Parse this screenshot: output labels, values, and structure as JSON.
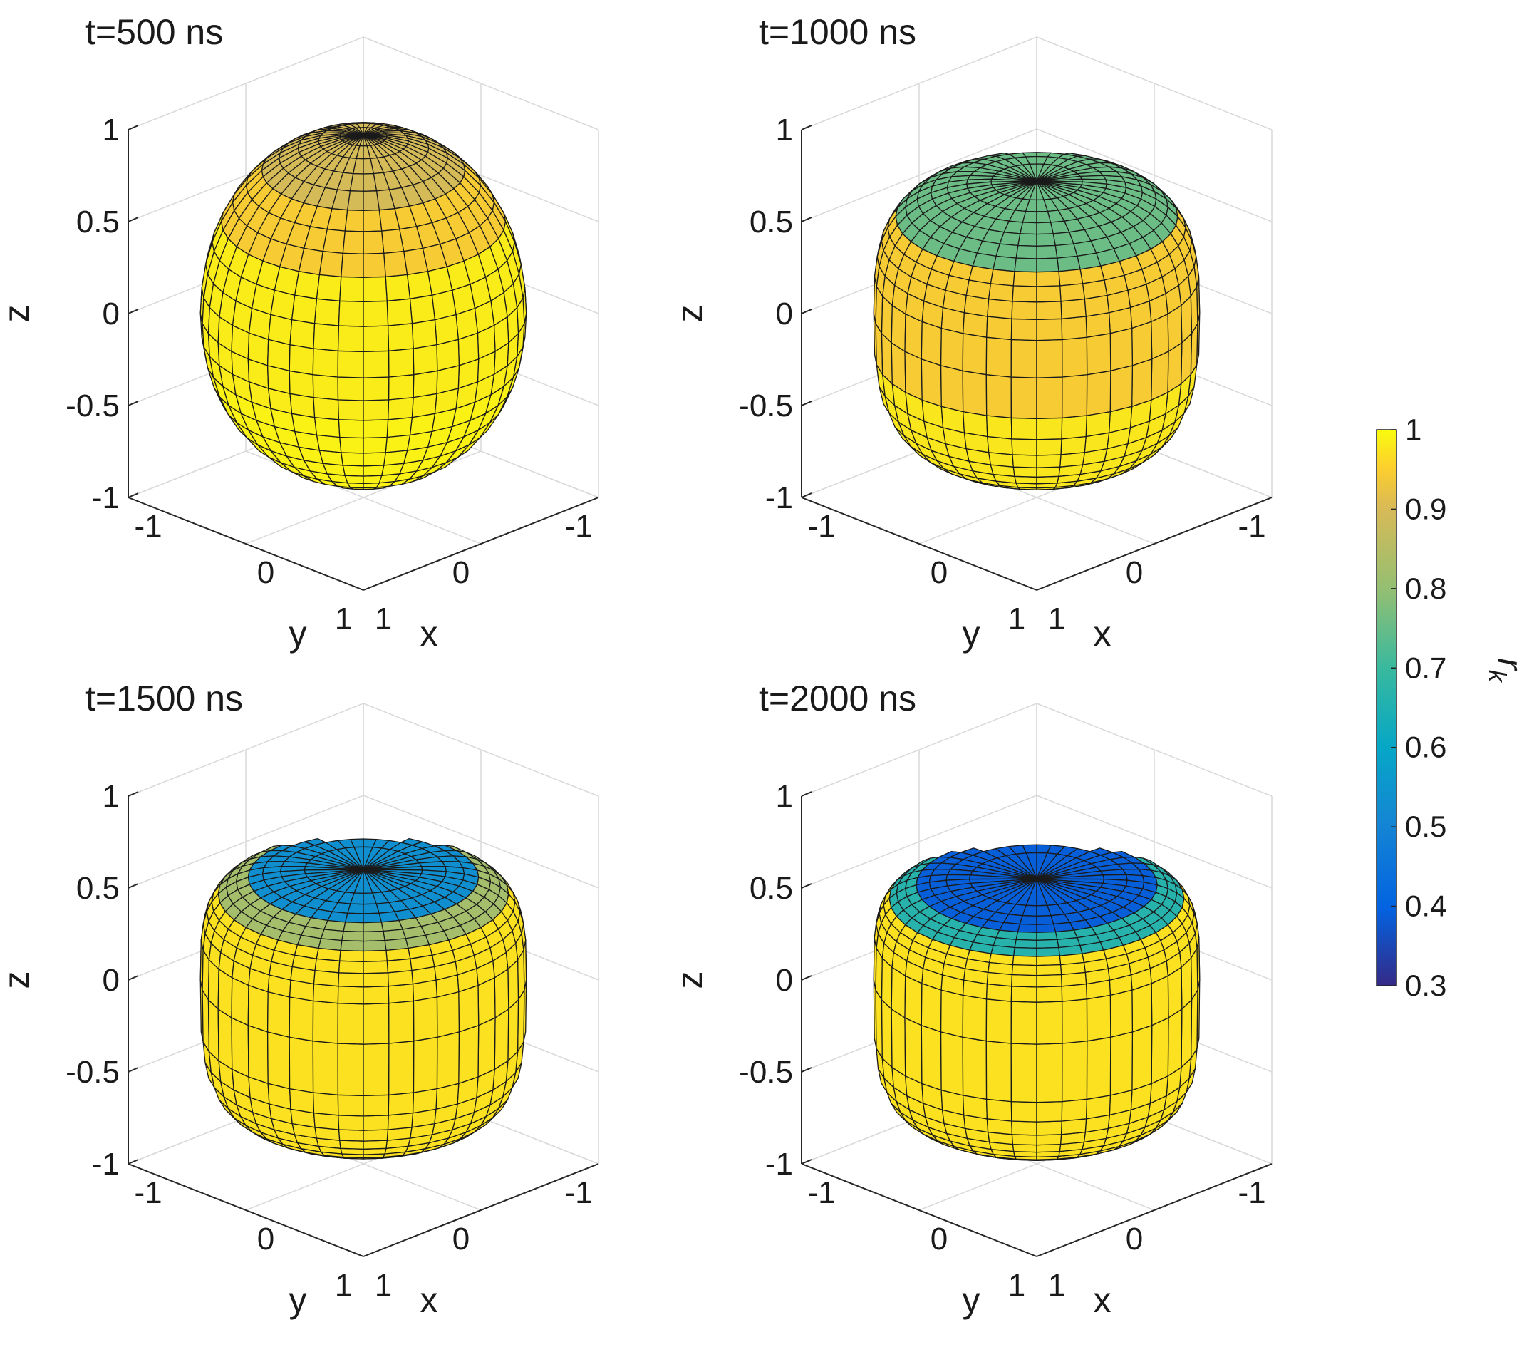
{
  "chart_data": {
    "type": "surface3d",
    "colormap": "parula",
    "colorbar": {
      "label": "r",
      "label_subscript": "k",
      "range": [
        0.3,
        1
      ],
      "ticks": [
        "1",
        "0.9",
        "0.8",
        "0.7",
        "0.6",
        "0.5",
        "0.4",
        "0.3"
      ]
    },
    "panels": [
      {
        "title": "t=500 ns",
        "xlabel": "x",
        "ylabel": "y",
        "zlabel": "z",
        "xticks": [
          "-1",
          "0",
          "1"
        ],
        "yticks": [
          "-1",
          "0",
          "1"
        ],
        "zticks": [
          "1",
          "0.5",
          "0",
          "-0.5",
          "-1"
        ],
        "xlim": [
          -1,
          1
        ],
        "ylim": [
          -1,
          1
        ],
        "zlim": [
          -1,
          1
        ],
        "shape": {
          "equator_radius": 0.98,
          "top_z": 0.97,
          "bottom_z": -0.88,
          "profile_power": 2.1
        },
        "color_by_latitude": [
          {
            "z": 0.97,
            "value": 0.82
          },
          {
            "z": 0.55,
            "value": 0.9
          },
          {
            "z": 0.45,
            "value": 0.97
          },
          {
            "z": -0.88,
            "value": 0.98
          }
        ]
      },
      {
        "title": "t=1000 ns",
        "xlabel": "x",
        "ylabel": "y",
        "zlabel": "z",
        "xticks": [
          "-1",
          "0",
          "1"
        ],
        "yticks": [
          "-1",
          "0",
          "1"
        ],
        "zticks": [
          "1",
          "0.5",
          "0",
          "-0.5",
          "-1"
        ],
        "xlim": [
          -1,
          1
        ],
        "ylim": [
          -1,
          1
        ],
        "zlim": [
          -1,
          1
        ],
        "shape": {
          "equator_radius": 0.98,
          "top_z": 0.72,
          "bottom_z": -0.8,
          "profile_power": 3.2
        },
        "color_by_latitude": [
          {
            "z": 0.72,
            "value": 0.7
          },
          {
            "z": 0.6,
            "value": 0.7
          },
          {
            "z": 0.45,
            "value": 0.9
          },
          {
            "z": -0.8,
            "value": 0.96
          }
        ]
      },
      {
        "title": "t=1500 ns",
        "xlabel": "x",
        "ylabel": "y",
        "zlabel": "z",
        "xticks": [
          "-1",
          "0",
          "1"
        ],
        "yticks": [
          "-1",
          "0",
          "1"
        ],
        "zticks": [
          "1",
          "0.5",
          "0",
          "-0.5",
          "-1"
        ],
        "xlim": [
          -1,
          1
        ],
        "ylim": [
          -1,
          1
        ],
        "zlim": [
          -1,
          1
        ],
        "shape": {
          "equator_radius": 0.98,
          "top_z": 0.6,
          "bottom_z": -0.78,
          "profile_power": 4.0
        },
        "color_by_latitude": [
          {
            "z": 0.6,
            "value": 0.5
          },
          {
            "z": 0.5,
            "value": 0.76
          },
          {
            "z": 0.4,
            "value": 0.95
          },
          {
            "z": -0.78,
            "value": 0.95
          }
        ]
      },
      {
        "title": "t=2000 ns",
        "xlabel": "x",
        "ylabel": "y",
        "zlabel": "z",
        "xticks": [
          "-1",
          "0",
          "1"
        ],
        "yticks": [
          "-1",
          "0",
          "1"
        ],
        "zticks": [
          "1",
          "0.5",
          "0",
          "-0.5",
          "-1"
        ],
        "xlim": [
          -1,
          1
        ],
        "ylim": [
          -1,
          1
        ],
        "zlim": [
          -1,
          1
        ],
        "shape": {
          "equator_radius": 0.98,
          "top_z": 0.55,
          "bottom_z": -0.77,
          "profile_power": 4.6
        },
        "color_by_latitude": [
          {
            "z": 0.55,
            "value": 0.38
          },
          {
            "z": 0.48,
            "value": 0.62
          },
          {
            "z": 0.38,
            "value": 0.95
          },
          {
            "z": -0.77,
            "value": 0.95
          }
        ]
      }
    ]
  }
}
